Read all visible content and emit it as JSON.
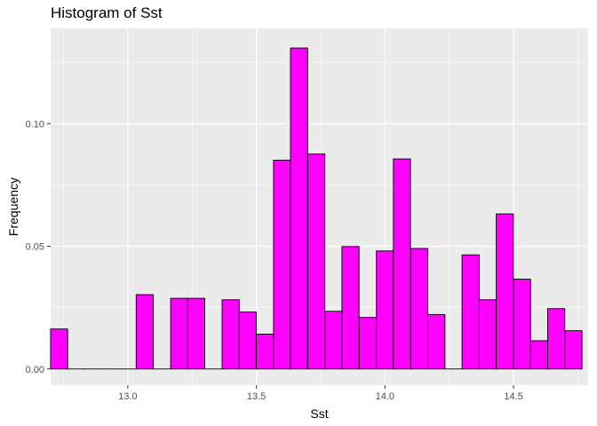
{
  "chart_data": {
    "type": "bar",
    "title": "Histogram of Sst",
    "xlabel": "Sst",
    "ylabel": "Frequency",
    "xlim": [
      12.7,
      14.79
    ],
    "ylim": [
      -0.0066,
      0.1388
    ],
    "x_ticks": [
      13.0,
      13.5,
      14.0,
      14.5
    ],
    "x_tick_labels": [
      "13.0",
      "13.5",
      "14.0",
      "14.5"
    ],
    "y_ticks": [
      0.0,
      0.05,
      0.1
    ],
    "y_tick_labels": [
      "0.00",
      "0.05",
      "0.10"
    ],
    "grid": true,
    "legend": "none",
    "colors": {
      "fill": "#FF00FF",
      "stroke": "#000000",
      "panel": "#EBEBEB",
      "grid": "#FFFFFF"
    },
    "bin_width": 0.0666,
    "bins": [
      {
        "x": 12.733,
        "y": 0.0163
      },
      {
        "x": 12.8,
        "y": 0.0
      },
      {
        "x": 12.866,
        "y": 0.0
      },
      {
        "x": 12.933,
        "y": 0.0
      },
      {
        "x": 13.0,
        "y": 0.0
      },
      {
        "x": 13.066,
        "y": 0.0303
      },
      {
        "x": 13.133,
        "y": 0.0
      },
      {
        "x": 13.2,
        "y": 0.0288
      },
      {
        "x": 13.266,
        "y": 0.0288
      },
      {
        "x": 13.333,
        "y": 0.0
      },
      {
        "x": 13.4,
        "y": 0.0282
      },
      {
        "x": 13.466,
        "y": 0.0232
      },
      {
        "x": 13.533,
        "y": 0.0142
      },
      {
        "x": 13.6,
        "y": 0.0851
      },
      {
        "x": 13.666,
        "y": 0.1308
      },
      {
        "x": 13.733,
        "y": 0.0876
      },
      {
        "x": 13.8,
        "y": 0.0235
      },
      {
        "x": 13.866,
        "y": 0.0499
      },
      {
        "x": 13.933,
        "y": 0.021
      },
      {
        "x": 14.0,
        "y": 0.0481
      },
      {
        "x": 14.066,
        "y": 0.0856
      },
      {
        "x": 14.133,
        "y": 0.0491
      },
      {
        "x": 14.2,
        "y": 0.0222
      },
      {
        "x": 14.266,
        "y": 0.0
      },
      {
        "x": 14.333,
        "y": 0.0465
      },
      {
        "x": 14.4,
        "y": 0.0282
      },
      {
        "x": 14.466,
        "y": 0.0632
      },
      {
        "x": 14.533,
        "y": 0.0366
      },
      {
        "x": 14.6,
        "y": 0.0115
      },
      {
        "x": 14.666,
        "y": 0.0246
      },
      {
        "x": 14.733,
        "y": 0.0156
      }
    ]
  }
}
